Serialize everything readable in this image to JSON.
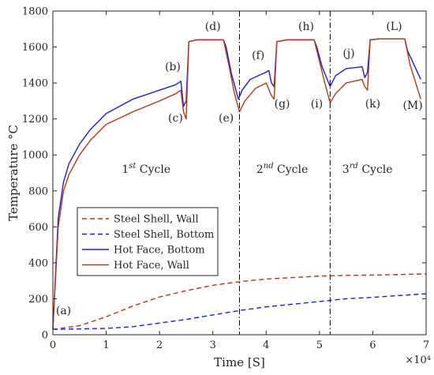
{
  "chart_data": {
    "type": "line",
    "xlabel": "Time [S]",
    "ylabel": "Temperature °C",
    "x_multiplier": "×10⁴",
    "xlim": [
      0,
      7
    ],
    "ylim": [
      0,
      1800
    ],
    "x_ticks": [
      "0",
      "1",
      "2",
      "3",
      "4",
      "5",
      "6",
      "7"
    ],
    "y_ticks": [
      "0",
      "200",
      "400",
      "600",
      "800",
      "1000",
      "1200",
      "1400",
      "1600",
      "1800"
    ],
    "grid": false,
    "legend_position": "lower-left",
    "colors": {
      "steel_wall": "#b03a1a",
      "steel_bottom": "#1f1fd6",
      "hot_bottom": "#1f1fd6",
      "hot_wall": "#b03a1a",
      "cycle_divider": "#000000"
    },
    "series": [
      {
        "name": "Steel Shell, Wall",
        "style": "dashed",
        "points": [
          [
            0,
            30
          ],
          [
            0.5,
            50
          ],
          [
            1,
            100
          ],
          [
            1.5,
            160
          ],
          [
            2,
            210
          ],
          [
            2.5,
            245
          ],
          [
            3,
            275
          ],
          [
            3.5,
            295
          ],
          [
            4,
            310
          ],
          [
            4.5,
            318
          ],
          [
            5,
            326
          ],
          [
            5.5,
            330
          ],
          [
            6,
            332
          ],
          [
            6.5,
            335
          ],
          [
            7,
            338
          ]
        ]
      },
      {
        "name": "Steel Shell, Bottom",
        "style": "dashed",
        "points": [
          [
            0,
            30
          ],
          [
            1,
            35
          ],
          [
            1.5,
            45
          ],
          [
            2,
            65
          ],
          [
            2.5,
            85
          ],
          [
            3,
            110
          ],
          [
            3.5,
            135
          ],
          [
            4,
            155
          ],
          [
            4.5,
            170
          ],
          [
            5,
            185
          ],
          [
            5.5,
            200
          ],
          [
            6,
            208
          ],
          [
            6.5,
            218
          ],
          [
            7,
            228
          ]
        ]
      },
      {
        "name": "Hot Face, Bottom",
        "style": "solid",
        "points": [
          [
            0,
            30
          ],
          [
            0.1,
            650
          ],
          [
            0.2,
            850
          ],
          [
            0.3,
            950
          ],
          [
            0.5,
            1060
          ],
          [
            0.7,
            1140
          ],
          [
            1,
            1230
          ],
          [
            1.5,
            1310
          ],
          [
            2,
            1360
          ],
          [
            2.3,
            1390
          ],
          [
            2.4,
            1410
          ],
          [
            2.45,
            1270
          ],
          [
            2.5,
            1300
          ],
          [
            2.55,
            1630
          ],
          [
            2.7,
            1640
          ],
          [
            3.2,
            1640
          ],
          [
            3.25,
            1600
          ],
          [
            3.35,
            1450
          ],
          [
            3.48,
            1310
          ],
          [
            3.55,
            1360
          ],
          [
            3.7,
            1420
          ],
          [
            4,
            1460
          ],
          [
            4.05,
            1470
          ],
          [
            4.1,
            1400
          ],
          [
            4.15,
            1380
          ],
          [
            4.2,
            1630
          ],
          [
            4.4,
            1640
          ],
          [
            4.9,
            1640
          ],
          [
            4.95,
            1600
          ],
          [
            5.05,
            1490
          ],
          [
            5.2,
            1380
          ],
          [
            5.3,
            1440
          ],
          [
            5.5,
            1480
          ],
          [
            5.8,
            1490
          ],
          [
            5.85,
            1430
          ],
          [
            5.9,
            1460
          ],
          [
            5.95,
            1640
          ],
          [
            6.1,
            1645
          ],
          [
            6.6,
            1645
          ],
          [
            6.65,
            1580
          ],
          [
            6.9,
            1420
          ]
        ]
      },
      {
        "name": "Hot Face, Wall",
        "style": "solid",
        "points": [
          [
            0,
            30
          ],
          [
            0.1,
            600
          ],
          [
            0.2,
            800
          ],
          [
            0.3,
            890
          ],
          [
            0.5,
            1000
          ],
          [
            0.7,
            1080
          ],
          [
            1,
            1170
          ],
          [
            1.5,
            1240
          ],
          [
            2,
            1300
          ],
          [
            2.3,
            1340
          ],
          [
            2.4,
            1360
          ],
          [
            2.45,
            1240
          ],
          [
            2.5,
            1200
          ],
          [
            2.55,
            1630
          ],
          [
            2.7,
            1640
          ],
          [
            3.2,
            1640
          ],
          [
            3.3,
            1500
          ],
          [
            3.4,
            1350
          ],
          [
            3.5,
            1240
          ],
          [
            3.6,
            1300
          ],
          [
            3.8,
            1370
          ],
          [
            4,
            1400
          ],
          [
            4.1,
            1330
          ],
          [
            4.15,
            1310
          ],
          [
            4.2,
            1630
          ],
          [
            4.4,
            1640
          ],
          [
            4.9,
            1640
          ],
          [
            5,
            1520
          ],
          [
            5.1,
            1400
          ],
          [
            5.2,
            1290
          ],
          [
            5.3,
            1340
          ],
          [
            5.5,
            1400
          ],
          [
            5.8,
            1420
          ],
          [
            5.85,
            1380
          ],
          [
            5.9,
            1360
          ],
          [
            5.95,
            1640
          ],
          [
            6.1,
            1645
          ],
          [
            6.6,
            1645
          ],
          [
            6.7,
            1500
          ],
          [
            6.9,
            1310
          ]
        ]
      }
    ],
    "cycle_dividers_x": [
      3.5,
      5.2
    ],
    "cycle_labels": [
      {
        "text": "1",
        "sup": "st",
        "rest": " Cycle",
        "x": 1.75,
        "y": 900
      },
      {
        "text": "2",
        "sup": "nd",
        "rest": " Cycle",
        "x": 4.3,
        "y": 900
      },
      {
        "text": "3",
        "sup": "rd",
        "rest": " Cycle",
        "x": 5.9,
        "y": 900
      }
    ],
    "point_labels": [
      {
        "text": "(a)",
        "x": 0.2,
        "y": 115
      },
      {
        "text": "(b)",
        "x": 2.25,
        "y": 1470
      },
      {
        "text": "(c)",
        "x": 2.3,
        "y": 1185
      },
      {
        "text": "(d)",
        "x": 3.0,
        "y": 1695
      },
      {
        "text": "(e)",
        "x": 3.25,
        "y": 1185
      },
      {
        "text": "(f)",
        "x": 3.85,
        "y": 1535
      },
      {
        "text": "(g)",
        "x": 4.3,
        "y": 1265
      },
      {
        "text": "(h)",
        "x": 4.75,
        "y": 1695
      },
      {
        "text": "(i)",
        "x": 4.95,
        "y": 1265
      },
      {
        "text": "(j)",
        "x": 5.55,
        "y": 1545
      },
      {
        "text": "(k)",
        "x": 6.0,
        "y": 1265
      },
      {
        "text": "(L)",
        "x": 6.4,
        "y": 1695
      },
      {
        "text": "(M)",
        "x": 6.75,
        "y": 1255
      }
    ]
  }
}
